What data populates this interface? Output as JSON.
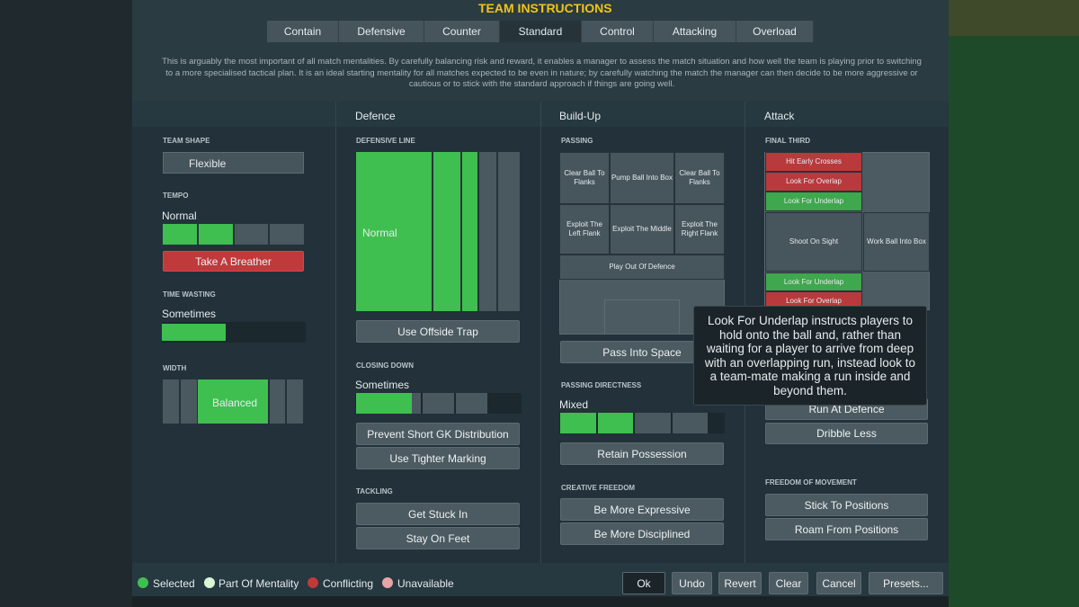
{
  "header": {
    "title": "TEAM INSTRUCTIONS",
    "tabs": [
      "Contain",
      "Defensive",
      "Counter",
      "Standard",
      "Control",
      "Attacking",
      "Overload"
    ],
    "description": "This is arguably the most important of all match mentalities. By carefully balancing risk and reward, it enables a manager to assess the match situation and how well the team is playing prior to switching to a more specialised tactical plan. It is an ideal starting mentality for all matches expected to be even in nature; by carefully watching the match the manager can then decide to be more aggressive or cautious or to stick with the standard approach if things are going well."
  },
  "columns": {
    "defence": "Defence",
    "build_up": "Build-Up",
    "attack": "Attack"
  },
  "team_shape": {
    "label": "TEAM SHAPE",
    "value": "Flexible"
  },
  "tempo": {
    "label": "TEMPO",
    "value": "Normal",
    "button": "Take A Breather"
  },
  "time_wasting": {
    "label": "TIME WASTING",
    "value": "Sometimes"
  },
  "width": {
    "label": "WIDTH",
    "value": "Balanced"
  },
  "defensive_line": {
    "label": "DEFENSIVE LINE",
    "value": "Normal",
    "button": "Use Offside Trap"
  },
  "closing_down": {
    "label": "CLOSING DOWN",
    "value": "Sometimes",
    "buttons": [
      "Prevent Short GK Distribution",
      "Use Tighter Marking"
    ]
  },
  "tackling": {
    "label": "TACKLING",
    "buttons": [
      "Get Stuck In",
      "Stay On Feet"
    ]
  },
  "passing": {
    "label": "PASSING",
    "cells": [
      "Clear Ball To Flanks",
      "Pump Ball Into Box",
      "Clear Ball To Flanks",
      "Exploit The Left Flank",
      "Exploit The Middle",
      "Exploit The Right Flank",
      "Play Out Of Defence"
    ],
    "button": "Pass Into Space"
  },
  "passing_directness": {
    "label": "PASSING DIRECTNESS",
    "value": "Mixed",
    "button": "Retain Possession"
  },
  "creative_freedom": {
    "label": "CREATIVE FREEDOM",
    "buttons": [
      "Be More Expressive",
      "Be More Disciplined"
    ]
  },
  "final_third": {
    "label": "FINAL THIRD",
    "cells": [
      "Hit Early Crosses",
      "Look For Overlap",
      "Look For Underlap",
      "Shoot On Sight",
      "Work Ball Into Box",
      "Look For Underlap",
      "Look For Overlap"
    ],
    "buttons": [
      "Run At Defence",
      "Dribble Less"
    ]
  },
  "freedom_of_movement": {
    "label": "FREEDOM OF MOVEMENT",
    "buttons": [
      "Stick To Positions",
      "Roam From Positions"
    ]
  },
  "tooltip": "Look For Underlap instructs players to hold onto the ball and, rather than waiting for a player to arrive from deep with an overlapping run, instead look to a team-mate making a run inside and beyond them.",
  "legend": [
    "Selected",
    "Part Of Mentality",
    "Conflicting",
    "Unavailable"
  ],
  "footer_buttons": [
    "Ok",
    "Undo",
    "Revert",
    "Clear",
    "Cancel",
    "Presets..."
  ]
}
